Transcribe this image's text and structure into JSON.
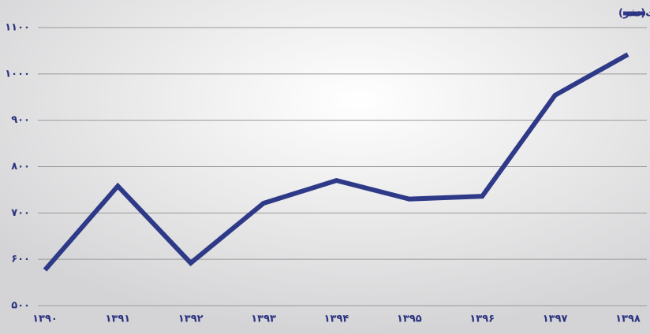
{
  "chart_data": {
    "type": "line",
    "categories": [
      "۱۳۹۰",
      "۱۳۹۱",
      "۱۳۹۲",
      "۱۳۹۳",
      "۱۳۹۴",
      "۱۳۹۵",
      "۱۳۹۶",
      "۱۳۹۷",
      "۱۳۹۸"
    ],
    "series": [
      {
        "name": "نسبت پرونده‌های جعل سرقت و کلاهبرداری به ازای صدهزارنفر جمعیت(نفر)",
        "color": "#2e3a87",
        "values": [
          577,
          758,
          592,
          721,
          770,
          730,
          736,
          954,
          1042
        ]
      }
    ],
    "ylim": [
      500,
      1100
    ],
    "yticks": [
      {
        "value": 500,
        "label": "۵۰۰"
      },
      {
        "value": 600,
        "label": "۶۰۰"
      },
      {
        "value": 700,
        "label": "۷۰۰"
      },
      {
        "value": 800,
        "label": "۸۰۰"
      },
      {
        "value": 900,
        "label": "۹۰۰"
      },
      {
        "value": 1000,
        "label": "۱۰۰۰"
      },
      {
        "value": 1100,
        "label": "۱۱۰۰"
      }
    ],
    "grid": true,
    "legend": "top-right"
  }
}
